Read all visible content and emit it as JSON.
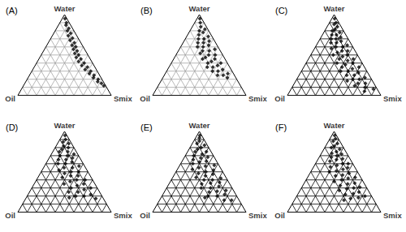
{
  "chart_data": [
    {
      "type": "ternary",
      "title": "(A)",
      "components": [
        "Water",
        "Oil",
        "Smix"
      ],
      "ticks": [
        0,
        10,
        20,
        30,
        40,
        50,
        60,
        70,
        80,
        90,
        100
      ],
      "grid": true,
      "color": "#000000",
      "marker": "diamond",
      "values": [
        [
          95,
          2,
          3
        ],
        [
          90,
          3,
          7
        ],
        [
          87,
          5,
          8
        ],
        [
          83,
          4,
          13
        ],
        [
          80,
          7,
          13
        ],
        [
          77,
          5,
          18
        ],
        [
          74,
          9,
          17
        ],
        [
          71,
          6,
          23
        ],
        [
          68,
          10,
          22
        ],
        [
          65,
          7,
          28
        ],
        [
          62,
          11,
          27
        ],
        [
          60,
          8,
          32
        ],
        [
          57,
          12,
          31
        ],
        [
          55,
          9,
          36
        ],
        [
          52,
          13,
          35
        ],
        [
          50,
          10,
          40
        ],
        [
          47,
          14,
          39
        ],
        [
          45,
          10,
          45
        ],
        [
          42,
          14,
          44
        ],
        [
          40,
          9,
          51
        ],
        [
          37,
          13,
          50
        ],
        [
          35,
          8,
          57
        ],
        [
          32,
          12,
          56
        ],
        [
          30,
          7,
          63
        ],
        [
          27,
          10,
          63
        ],
        [
          25,
          6,
          69
        ],
        [
          22,
          8,
          70
        ],
        [
          20,
          4,
          76
        ],
        [
          17,
          6,
          77
        ],
        [
          15,
          3,
          82
        ],
        [
          12,
          2,
          86
        ]
      ]
    },
    {
      "type": "ternary",
      "title": "(B)",
      "components": [
        "Water",
        "Oil",
        "Smix"
      ],
      "ticks": [
        0,
        10,
        20,
        30,
        40,
        50,
        60,
        70,
        80,
        90,
        100
      ],
      "grid": true,
      "color": "#000000",
      "marker": "diamond",
      "values": [
        [
          95,
          2,
          3
        ],
        [
          90,
          4,
          6
        ],
        [
          85,
          6,
          9
        ],
        [
          82,
          3,
          15
        ],
        [
          80,
          10,
          10
        ],
        [
          78,
          7,
          15
        ],
        [
          75,
          13,
          12
        ],
        [
          73,
          4,
          23
        ],
        [
          70,
          10,
          20
        ],
        [
          70,
          16,
          14
        ],
        [
          67,
          6,
          27
        ],
        [
          65,
          13,
          22
        ],
        [
          65,
          19,
          16
        ],
        [
          62,
          9,
          29
        ],
        [
          60,
          16,
          24
        ],
        [
          60,
          22,
          18
        ],
        [
          57,
          5,
          38
        ],
        [
          55,
          12,
          33
        ],
        [
          55,
          19,
          26
        ],
        [
          52,
          23,
          25
        ],
        [
          50,
          8,
          42
        ],
        [
          50,
          15,
          35
        ],
        [
          47,
          20,
          33
        ],
        [
          45,
          11,
          44
        ],
        [
          45,
          24,
          31
        ],
        [
          42,
          16,
          42
        ],
        [
          40,
          7,
          53
        ],
        [
          40,
          21,
          39
        ],
        [
          37,
          12,
          51
        ],
        [
          35,
          18,
          47
        ],
        [
          35,
          24,
          41
        ],
        [
          32,
          9,
          59
        ],
        [
          30,
          15,
          55
        ],
        [
          30,
          21,
          49
        ],
        [
          27,
          6,
          67
        ],
        [
          25,
          12,
          63
        ],
        [
          25,
          18,
          57
        ],
        [
          22,
          9,
          69
        ]
      ]
    },
    {
      "type": "ternary",
      "title": "(C)",
      "components": [
        "Water",
        "Oil",
        "Smix"
      ],
      "ticks": [
        0,
        10,
        20,
        30,
        40,
        50,
        60,
        70,
        80,
        90,
        100
      ],
      "grid": true,
      "color": "#000000",
      "marker": "diamond",
      "values": [
        [
          95,
          2,
          3
        ],
        [
          90,
          3,
          7
        ],
        [
          88,
          6,
          6
        ],
        [
          85,
          4,
          11
        ],
        [
          82,
          8,
          10
        ],
        [
          80,
          12,
          8
        ],
        [
          78,
          5,
          17
        ],
        [
          75,
          10,
          15
        ],
        [
          75,
          15,
          10
        ],
        [
          72,
          7,
          21
        ],
        [
          70,
          13,
          17
        ],
        [
          70,
          18,
          12
        ],
        [
          67,
          9,
          24
        ],
        [
          65,
          15,
          20
        ],
        [
          65,
          21,
          14
        ],
        [
          62,
          5,
          33
        ],
        [
          60,
          11,
          29
        ],
        [
          60,
          18,
          22
        ],
        [
          58,
          24,
          18
        ],
        [
          55,
          8,
          37
        ],
        [
          55,
          14,
          31
        ],
        [
          53,
          20,
          27
        ],
        [
          50,
          26,
          24
        ],
        [
          50,
          11,
          39
        ],
        [
          48,
          17,
          35
        ],
        [
          45,
          7,
          48
        ],
        [
          45,
          22,
          33
        ],
        [
          43,
          14,
          43
        ],
        [
          40,
          27,
          33
        ],
        [
          40,
          10,
          50
        ],
        [
          38,
          19,
          43
        ],
        [
          35,
          24,
          41
        ],
        [
          35,
          6,
          59
        ],
        [
          33,
          14,
          53
        ],
        [
          30,
          20,
          50
        ],
        [
          30,
          28,
          42
        ],
        [
          28,
          10,
          62
        ],
        [
          25,
          16,
          59
        ],
        [
          25,
          24,
          51
        ],
        [
          22,
          6,
          72
        ],
        [
          20,
          13,
          67
        ],
        [
          20,
          20,
          60
        ],
        [
          18,
          27,
          55
        ],
        [
          15,
          9,
          76
        ],
        [
          15,
          17,
          68
        ],
        [
          12,
          22,
          66
        ],
        [
          10,
          12,
          78
        ],
        [
          8,
          4,
          88
        ],
        [
          5,
          15,
          80
        ]
      ]
    },
    {
      "type": "ternary",
      "title": "(D)",
      "components": [
        "Water",
        "Oil",
        "Smix"
      ],
      "ticks": [
        0,
        10,
        20,
        30,
        40,
        50,
        60,
        70,
        80,
        90,
        100
      ],
      "grid": true,
      "color": "#000000",
      "marker": "diamond",
      "values": [
        [
          95,
          2,
          3
        ],
        [
          90,
          4,
          6
        ],
        [
          87,
          8,
          5
        ],
        [
          85,
          3,
          12
        ],
        [
          82,
          10,
          8
        ],
        [
          80,
          6,
          14
        ],
        [
          78,
          14,
          8
        ],
        [
          75,
          9,
          16
        ],
        [
          75,
          18,
          7
        ],
        [
          72,
          4,
          24
        ],
        [
          70,
          12,
          18
        ],
        [
          70,
          20,
          10
        ],
        [
          67,
          8,
          25
        ],
        [
          65,
          16,
          19
        ],
        [
          65,
          24,
          11
        ],
        [
          62,
          11,
          27
        ],
        [
          60,
          19,
          21
        ],
        [
          60,
          27,
          13
        ],
        [
          57,
          6,
          37
        ],
        [
          55,
          14,
          31
        ],
        [
          55,
          23,
          22
        ],
        [
          52,
          30,
          18
        ],
        [
          50,
          10,
          40
        ],
        [
          50,
          18,
          32
        ],
        [
          48,
          26,
          26
        ],
        [
          45,
          13,
          42
        ],
        [
          45,
          21,
          34
        ],
        [
          43,
          31,
          26
        ],
        [
          40,
          8,
          52
        ],
        [
          40,
          17,
          43
        ],
        [
          38,
          25,
          37
        ],
        [
          35,
          12,
          53
        ],
        [
          35,
          33,
          32
        ],
        [
          33,
          20,
          47
        ],
        [
          30,
          28,
          42
        ],
        [
          30,
          7,
          63
        ],
        [
          28,
          15,
          57
        ],
        [
          25,
          23,
          52
        ],
        [
          25,
          33,
          42
        ],
        [
          22,
          11,
          67
        ],
        [
          20,
          19,
          61
        ],
        [
          20,
          28,
          52
        ],
        [
          18,
          36,
          46
        ],
        [
          17,
          8,
          75
        ]
      ]
    },
    {
      "type": "ternary",
      "title": "(E)",
      "components": [
        "Water",
        "Oil",
        "Smix"
      ],
      "ticks": [
        0,
        10,
        20,
        30,
        40,
        50,
        60,
        70,
        80,
        90,
        100
      ],
      "grid": true,
      "color": "#000000",
      "marker": "diamond",
      "values": [
        [
          95,
          2,
          3
        ],
        [
          92,
          4,
          4
        ],
        [
          88,
          6,
          6
        ],
        [
          85,
          10,
          5
        ],
        [
          83,
          3,
          14
        ],
        [
          80,
          8,
          12
        ],
        [
          78,
          13,
          9
        ],
        [
          75,
          5,
          20
        ],
        [
          75,
          17,
          8
        ],
        [
          72,
          11,
          17
        ],
        [
          70,
          21,
          9
        ],
        [
          68,
          7,
          25
        ],
        [
          67,
          15,
          18
        ],
        [
          65,
          24,
          11
        ],
        [
          63,
          11,
          26
        ],
        [
          62,
          19,
          19
        ],
        [
          60,
          27,
          13
        ],
        [
          58,
          5,
          37
        ],
        [
          57,
          15,
          28
        ],
        [
          55,
          23,
          22
        ],
        [
          53,
          31,
          16
        ],
        [
          52,
          9,
          39
        ],
        [
          50,
          18,
          32
        ],
        [
          48,
          27,
          25
        ],
        [
          47,
          12,
          41
        ],
        [
          45,
          21,
          34
        ],
        [
          43,
          32,
          25
        ],
        [
          42,
          6,
          52
        ],
        [
          40,
          16,
          44
        ],
        [
          40,
          25,
          35
        ],
        [
          37,
          10,
          53
        ],
        [
          36,
          20,
          44
        ],
        [
          35,
          30,
          35
        ],
        [
          32,
          13,
          55
        ],
        [
          30,
          23,
          47
        ],
        [
          30,
          33,
          37
        ],
        [
          27,
          8,
          65
        ],
        [
          26,
          18,
          56
        ],
        [
          25,
          27,
          48
        ],
        [
          22,
          12,
          66
        ],
        [
          20,
          21,
          59
        ],
        [
          20,
          31,
          49
        ],
        [
          18,
          35,
          47
        ],
        [
          15,
          8,
          77
        ],
        [
          15,
          16,
          69
        ]
      ]
    },
    {
      "type": "ternary",
      "title": "(F)",
      "components": [
        "Water",
        "Oil",
        "Smix"
      ],
      "ticks": [
        0,
        10,
        20,
        30,
        40,
        50,
        60,
        70,
        80,
        90,
        100
      ],
      "grid": true,
      "color": "#000000",
      "marker": "diamond",
      "values": [
        [
          95,
          2,
          3
        ],
        [
          91,
          3,
          6
        ],
        [
          88,
          7,
          5
        ],
        [
          85,
          4,
          11
        ],
        [
          82,
          9,
          9
        ],
        [
          80,
          13,
          7
        ],
        [
          78,
          5,
          17
        ],
        [
          75,
          10,
          15
        ],
        [
          73,
          16,
          11
        ],
        [
          72,
          6,
          22
        ],
        [
          70,
          12,
          18
        ],
        [
          68,
          19,
          13
        ],
        [
          66,
          8,
          26
        ],
        [
          65,
          15,
          20
        ],
        [
          63,
          23,
          14
        ],
        [
          60,
          5,
          35
        ],
        [
          60,
          11,
          29
        ],
        [
          58,
          18,
          24
        ],
        [
          56,
          26,
          18
        ],
        [
          55,
          8,
          37
        ],
        [
          53,
          14,
          33
        ],
        [
          51,
          22,
          27
        ],
        [
          50,
          30,
          20
        ],
        [
          48,
          10,
          42
        ],
        [
          46,
          18,
          36
        ],
        [
          45,
          26,
          29
        ],
        [
          43,
          6,
          51
        ],
        [
          42,
          14,
          44
        ],
        [
          40,
          22,
          38
        ],
        [
          38,
          31,
          31
        ],
        [
          36,
          10,
          54
        ],
        [
          35,
          18,
          47
        ],
        [
          33,
          27,
          40
        ],
        [
          31,
          7,
          62
        ],
        [
          30,
          14,
          56
        ],
        [
          29,
          22,
          49
        ],
        [
          27,
          31,
          42
        ],
        [
          25,
          11,
          64
        ],
        [
          23,
          18,
          59
        ],
        [
          22,
          27,
          51
        ],
        [
          20,
          7,
          73
        ],
        [
          18,
          15,
          67
        ],
        [
          17,
          24,
          59
        ],
        [
          15,
          32,
          53
        ]
      ]
    }
  ]
}
